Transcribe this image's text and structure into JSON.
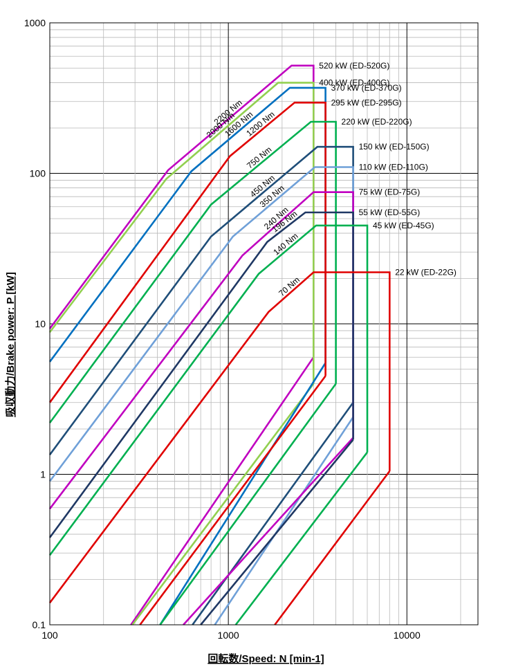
{
  "chart_data": {
    "type": "line",
    "title": "",
    "xlabel": "回転数/Speed: N [min-1]",
    "ylabel": "吸収動力/Brake power: P [kW]",
    "x_scale": "log",
    "y_scale": "log",
    "xlim": [
      100,
      25000
    ],
    "ylim": [
      0.1,
      1000
    ],
    "x_ticks": [
      {
        "v": 100,
        "label": "100"
      },
      {
        "v": 1000,
        "label": "1000"
      },
      {
        "v": 10000,
        "label": "10000"
      }
    ],
    "y_ticks": [
      {
        "v": 0.1,
        "label": "0.1"
      },
      {
        "v": 1,
        "label": "1"
      },
      {
        "v": 10,
        "label": "10"
      },
      {
        "v": 100,
        "label": "100"
      },
      {
        "v": 1000,
        "label": "1000"
      }
    ],
    "grid": true,
    "series": [
      {
        "name": "520 kW (ED-520G)",
        "color": "#c000c0",
        "torque_label": "2200 Nm",
        "upper": [
          [
            100,
            9.3
          ],
          [
            460,
            105
          ],
          [
            2260,
            520
          ],
          [
            3000,
            520
          ],
          [
            3000,
            6
          ]
        ],
        "lower": [
          [
            3000,
            6
          ],
          [
            285,
            0.1
          ]
        ]
      },
      {
        "name": "400 kW (ED-400G)",
        "color": "#92d050",
        "torque_label": "2000 Nm",
        "upper": [
          [
            100,
            8.8
          ],
          [
            450,
            92
          ],
          [
            1900,
            400
          ],
          [
            3000,
            400
          ],
          [
            3000,
            4
          ]
        ],
        "lower": [
          [
            3000,
            4
          ],
          [
            290,
            0.1
          ]
        ]
      },
      {
        "name": "370 kW (ED-370G)",
        "color": "#0070c0",
        "torque_label": "1600 Nm",
        "upper": [
          [
            100,
            5.6
          ],
          [
            620,
            103
          ],
          [
            2210,
            370
          ],
          [
            3500,
            370
          ],
          [
            3500,
            5.5
          ]
        ],
        "lower": [
          [
            3500,
            5.5
          ],
          [
            415,
            0.1
          ]
        ]
      },
      {
        "name": "295 kW (ED-295G)",
        "color": "#e00000",
        "torque_label": "1200 Nm",
        "upper": [
          [
            100,
            3
          ],
          [
            1020,
            130
          ],
          [
            2350,
            295
          ],
          [
            3500,
            295
          ],
          [
            3500,
            4.5
          ]
        ],
        "lower": [
          [
            3500,
            4.5
          ],
          [
            320,
            0.1
          ]
        ]
      },
      {
        "name": "220 kW (ED-220G)",
        "color": "#00b050",
        "torque_label": "750 Nm",
        "upper": [
          [
            100,
            2.2
          ],
          [
            800,
            62
          ],
          [
            2900,
            220
          ],
          [
            4000,
            220
          ],
          [
            4000,
            4
          ]
        ],
        "lower": [
          [
            4000,
            4
          ],
          [
            415,
            0.1
          ]
        ]
      },
      {
        "name": "150 kW (ED-150G)",
        "color": "#1f4e79",
        "torque_label": "450 Nm",
        "upper": [
          [
            100,
            1.35
          ],
          [
            800,
            38
          ],
          [
            3150,
            150
          ],
          [
            5000,
            150
          ],
          [
            5000,
            3
          ]
        ],
        "lower": [
          [
            5000,
            3
          ],
          [
            630,
            0.1
          ]
        ]
      },
      {
        "name": "110 kW (ED-110G)",
        "color": "#6fa0d8",
        "torque_label": "350 Nm",
        "upper": [
          [
            100,
            0.9
          ],
          [
            1060,
            38
          ],
          [
            3050,
            110
          ],
          [
            5000,
            110
          ],
          [
            5000,
            2.4
          ]
        ],
        "lower": [
          [
            5000,
            2.4
          ],
          [
            840,
            0.1
          ]
        ]
      },
      {
        "name": "75 kW (ED-75G)",
        "color": "#c000c0",
        "torque_label": "240 Nm",
        "upper": [
          [
            100,
            0.59
          ],
          [
            1200,
            28.5
          ],
          [
            3000,
            75
          ],
          [
            5000,
            75
          ],
          [
            5000,
            1.75
          ]
        ],
        "lower": [
          [
            5000,
            1.75
          ],
          [
            560,
            0.1
          ]
        ]
      },
      {
        "name": "55 kW (ED-55G)",
        "color": "#1f3864",
        "torque_label": "196 Nm",
        "upper": [
          [
            100,
            0.38
          ],
          [
            1650,
            35
          ],
          [
            2700,
            55
          ],
          [
            5000,
            55
          ],
          [
            5000,
            1.7
          ]
        ],
        "lower": [
          [
            5000,
            1.7
          ],
          [
            700,
            0.1
          ]
        ]
      },
      {
        "name": "45 kW (ED-45G)",
        "color": "#00b050",
        "torque_label": "140 Nm",
        "upper": [
          [
            100,
            0.29
          ],
          [
            1480,
            21.5
          ],
          [
            3100,
            45
          ],
          [
            6000,
            45
          ],
          [
            6000,
            1.4
          ]
        ],
        "lower": [
          [
            6000,
            1.4
          ],
          [
            1100,
            0.1
          ]
        ]
      },
      {
        "name": "22 kW (ED-22G)",
        "color": "#e00000",
        "torque_label": "70 Nm",
        "upper": [
          [
            100,
            0.14
          ],
          [
            1680,
            12
          ],
          [
            3000,
            22
          ],
          [
            8000,
            22
          ],
          [
            8000,
            1.05
          ]
        ],
        "lower": [
          [
            8000,
            1.05
          ],
          [
            1820,
            0.1
          ]
        ]
      }
    ]
  }
}
